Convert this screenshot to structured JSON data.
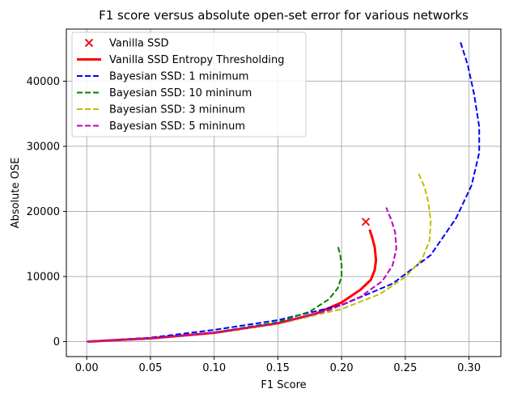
{
  "chart_data": {
    "type": "line",
    "title": "F1 score versus absolute open-set error for various networks",
    "xlabel": "F1 Score",
    "ylabel": "Absolute OSE",
    "xlim": [
      -0.016,
      0.325
    ],
    "ylim": [
      -2300,
      48000
    ],
    "xticks": [
      0.0,
      0.05,
      0.1,
      0.15,
      0.2,
      0.25,
      0.3
    ],
    "xtick_labels": [
      "0.00",
      "0.05",
      "0.10",
      "0.15",
      "0.20",
      "0.25",
      "0.30"
    ],
    "yticks": [
      0,
      10000,
      20000,
      30000,
      40000
    ],
    "ytick_labels": [
      "0",
      "10000",
      "20000",
      "30000",
      "40000"
    ],
    "grid": true,
    "legend_position": "upper-left",
    "series": [
      {
        "name": "Vanilla SSD",
        "kind": "marker",
        "marker": "x",
        "color": "#e31a1c",
        "points": [
          [
            0.219,
            18400
          ]
        ]
      },
      {
        "name": "Vanilla SSD Entropy Thresholding",
        "kind": "line",
        "dash": "solid",
        "color": "#ff0000",
        "points": [
          [
            0.001,
            0
          ],
          [
            0.05,
            500
          ],
          [
            0.1,
            1350
          ],
          [
            0.15,
            2800
          ],
          [
            0.18,
            4300
          ],
          [
            0.2,
            6000
          ],
          [
            0.215,
            8000
          ],
          [
            0.223,
            9500
          ],
          [
            0.226,
            11000
          ],
          [
            0.227,
            12500
          ],
          [
            0.226,
            14500
          ],
          [
            0.224,
            16000
          ],
          [
            0.222,
            17200
          ]
        ]
      },
      {
        "name": "Bayesian SSD: 1 minimum",
        "kind": "line",
        "dash": "dashed",
        "color": "#0000ff",
        "points": [
          [
            0.0,
            0
          ],
          [
            0.05,
            600
          ],
          [
            0.1,
            1800
          ],
          [
            0.15,
            3300
          ],
          [
            0.2,
            5600
          ],
          [
            0.24,
            8900
          ],
          [
            0.27,
            13300
          ],
          [
            0.29,
            19000
          ],
          [
            0.302,
            24000
          ],
          [
            0.308,
            29000
          ],
          [
            0.308,
            33000
          ],
          [
            0.304,
            38000
          ],
          [
            0.299,
            42500
          ],
          [
            0.293,
            46200
          ]
        ]
      },
      {
        "name": "Bayesian SSD: 10 mininum",
        "kind": "line",
        "dash": "dashed",
        "color": "#008000",
        "points": [
          [
            0.0,
            0
          ],
          [
            0.05,
            500
          ],
          [
            0.1,
            1400
          ],
          [
            0.15,
            3000
          ],
          [
            0.175,
            4600
          ],
          [
            0.19,
            6500
          ],
          [
            0.197,
            8200
          ],
          [
            0.2,
            10000
          ],
          [
            0.2,
            11800
          ],
          [
            0.199,
            13200
          ],
          [
            0.197,
            14800
          ]
        ]
      },
      {
        "name": "Bayesian SSD: 3 mininum",
        "kind": "line",
        "dash": "dashed",
        "color": "#bfbf00",
        "points": [
          [
            0.0,
            0
          ],
          [
            0.05,
            500
          ],
          [
            0.1,
            1350
          ],
          [
            0.15,
            2700
          ],
          [
            0.2,
            5000
          ],
          [
            0.23,
            7300
          ],
          [
            0.25,
            9900
          ],
          [
            0.263,
            12600
          ],
          [
            0.269,
            15500
          ],
          [
            0.27,
            18500
          ],
          [
            0.268,
            21500
          ],
          [
            0.265,
            23800
          ],
          [
            0.26,
            26000
          ]
        ]
      },
      {
        "name": "Bayesian SSD: 5 mininum",
        "kind": "line",
        "dash": "dashed",
        "color": "#bf00bf",
        "points": [
          [
            0.0,
            0
          ],
          [
            0.05,
            500
          ],
          [
            0.1,
            1350
          ],
          [
            0.15,
            2800
          ],
          [
            0.19,
            4800
          ],
          [
            0.215,
            6900
          ],
          [
            0.232,
            9300
          ],
          [
            0.24,
            11700
          ],
          [
            0.243,
            14300
          ],
          [
            0.242,
            16800
          ],
          [
            0.239,
            18700
          ],
          [
            0.235,
            20600
          ]
        ]
      }
    ]
  }
}
